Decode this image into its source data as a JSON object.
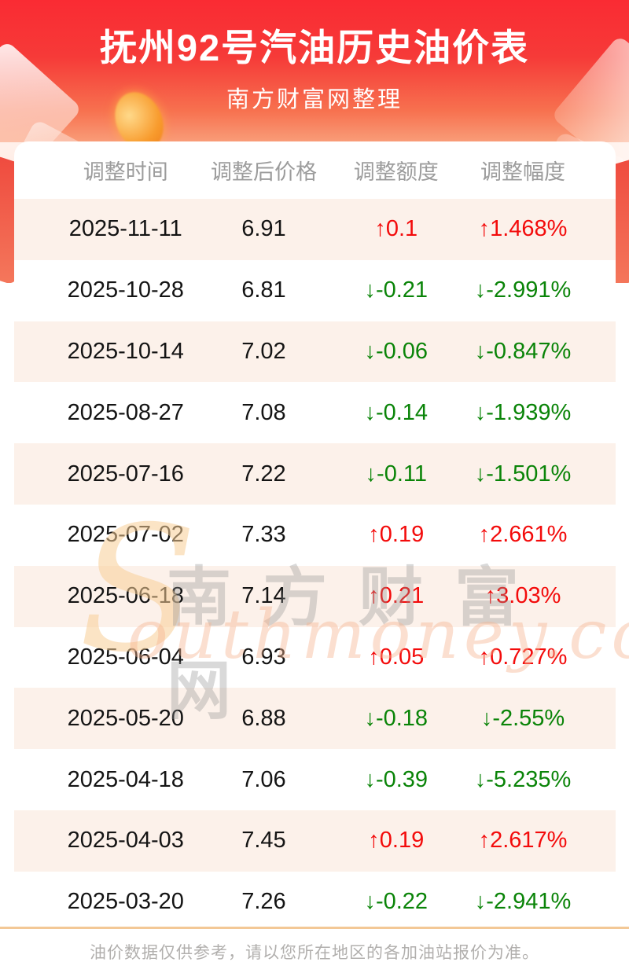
{
  "header": {
    "title": "抚州92号汽油历史油价表",
    "subtitle": "南方财富网整理"
  },
  "table": {
    "columns": [
      "调整时间",
      "调整后价格",
      "调整额度",
      "调整幅度"
    ],
    "rows": [
      {
        "date": "2025-11-11",
        "price": "6.91",
        "change": "↑0.1",
        "percent": "↑1.468%",
        "direction": "up"
      },
      {
        "date": "2025-10-28",
        "price": "6.81",
        "change": "↓-0.21",
        "percent": "↓-2.991%",
        "direction": "down"
      },
      {
        "date": "2025-10-14",
        "price": "7.02",
        "change": "↓-0.06",
        "percent": "↓-0.847%",
        "direction": "down"
      },
      {
        "date": "2025-08-27",
        "price": "7.08",
        "change": "↓-0.14",
        "percent": "↓-1.939%",
        "direction": "down"
      },
      {
        "date": "2025-07-16",
        "price": "7.22",
        "change": "↓-0.11",
        "percent": "↓-1.501%",
        "direction": "down"
      },
      {
        "date": "2025-07-02",
        "price": "7.33",
        "change": "↑0.19",
        "percent": "↑2.661%",
        "direction": "up"
      },
      {
        "date": "2025-06-18",
        "price": "7.14",
        "change": "↑0.21",
        "percent": "↑3.03%",
        "direction": "up"
      },
      {
        "date": "2025-06-04",
        "price": "6.93",
        "change": "↑0.05",
        "percent": "↑0.727%",
        "direction": "up"
      },
      {
        "date": "2025-05-20",
        "price": "6.88",
        "change": "↓-0.18",
        "percent": "↓-2.55%",
        "direction": "down"
      },
      {
        "date": "2025-04-18",
        "price": "7.06",
        "change": "↓-0.39",
        "percent": "↓-5.235%",
        "direction": "down"
      },
      {
        "date": "2025-04-03",
        "price": "7.45",
        "change": "↑0.19",
        "percent": "↑2.617%",
        "direction": "up"
      },
      {
        "date": "2025-03-20",
        "price": "7.26",
        "change": "↓-0.22",
        "percent": "↓-2.941%",
        "direction": "down"
      }
    ]
  },
  "watermark": {
    "swoosh": "S",
    "cn": "南方财富网",
    "en": "outhmoney.com"
  },
  "footer": {
    "note": "油价数据仅供参考，请以您所在地区的各加油站报价为准。"
  },
  "colors": {
    "up": "#f30b0b",
    "down": "#0a8408",
    "rowAlt": "#fcf1ea",
    "divider": "#f3c896",
    "headerTop": "#fa2b33",
    "headerBottom": "#f99d79"
  }
}
